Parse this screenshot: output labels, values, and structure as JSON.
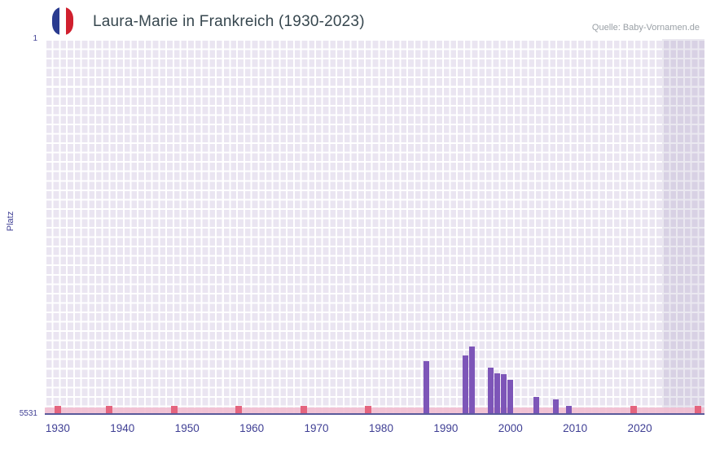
{
  "header": {
    "title": "Laura-Marie in Frankreich (1930-2023)",
    "source": "Quelle: Baby-Vornamen.de",
    "flag_icon": "french-flag-icon"
  },
  "chart_data": {
    "type": "bar",
    "title": "Laura-Marie in Frankreich (1930-2023)",
    "xlabel": "",
    "ylabel": "Platz",
    "x_axis": {
      "domain": [
        1928,
        2030
      ],
      "data_range": [
        1930,
        2023
      ],
      "tick_years": [
        1930,
        1940,
        1950,
        1960,
        1970,
        1980,
        1990,
        2000,
        2010,
        2020
      ]
    },
    "y_axis": {
      "min": 1,
      "max": 5531,
      "top_label": "1",
      "bottom_label": "5531",
      "inverted": true
    },
    "bars": [
      {
        "year": 1987,
        "rank": 4760
      },
      {
        "year": 1993,
        "rank": 4680
      },
      {
        "year": 1994,
        "rank": 4550
      },
      {
        "year": 1997,
        "rank": 4860
      },
      {
        "year": 1998,
        "rank": 4940
      },
      {
        "year": 1999,
        "rank": 4950
      },
      {
        "year": 2000,
        "rank": 5040
      },
      {
        "year": 2004,
        "rank": 5290
      },
      {
        "year": 2007,
        "rank": 5330
      },
      {
        "year": 2009,
        "rank": 5420
      }
    ],
    "baseline_strip": {
      "full_width": true,
      "mark_years": [
        1930,
        1938,
        1948,
        1958,
        1968,
        1978,
        2019,
        2029
      ]
    },
    "shaded_band": {
      "from": 2023.5,
      "to": 2030
    },
    "grid": true,
    "legend": false
  },
  "colors": {
    "bar": "#7d55b8",
    "plot_bg": "#eae5f1",
    "band_overlay": "#6d599424",
    "grid_line": "#ffffff",
    "axis_line": "#5a5a9b",
    "strip": "#f2bed0",
    "strip_mark": "#e4647e",
    "tick_label": "#3f3f94",
    "title": "#37474f",
    "source": "#9aa0a6",
    "flag_blue": "#2a3b8f",
    "flag_red": "#d0202e"
  }
}
